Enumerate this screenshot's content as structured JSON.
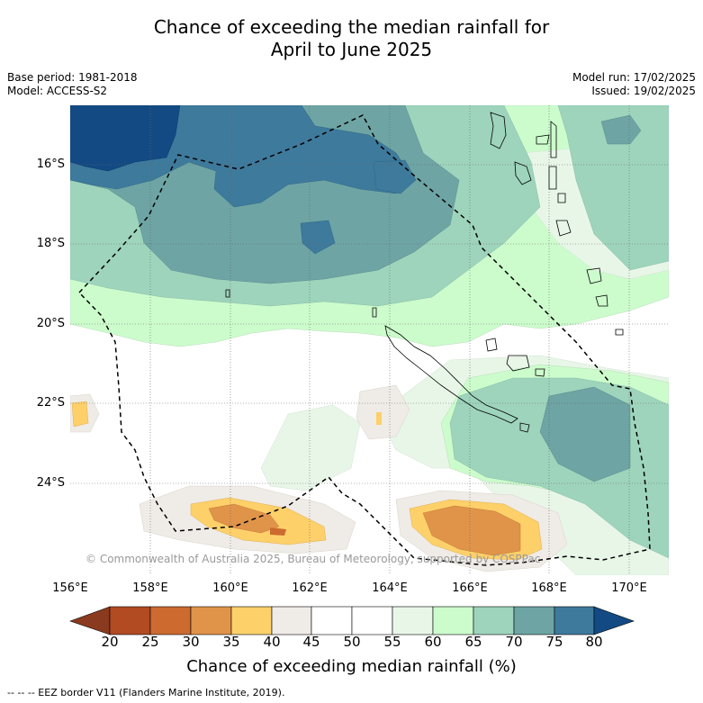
{
  "title_line1": "Chance of exceeding the median rainfall for",
  "title_line2": "April to June 2025",
  "meta_left": [
    "Base period: 1981-2018",
    "Model: ACCESS-S2"
  ],
  "meta_right": [
    "Model run: 17/02/2025",
    "Issued: 19/02/2025"
  ],
  "lat_labels": [
    "16°S",
    "18°S",
    "20°S",
    "22°S",
    "24°S"
  ],
  "lon_labels": [
    "156°E",
    "158°E",
    "160°E",
    "162°E",
    "164°E",
    "166°E",
    "168°E",
    "170°E"
  ],
  "copyright": "© Commonwealth of Australia 2025, Bureau of Meteorology, supported by COSPPac",
  "colorbar": {
    "ticks": [
      "20",
      "25",
      "30",
      "35",
      "40",
      "45",
      "50",
      "55",
      "60",
      "65",
      "70",
      "75",
      "80"
    ],
    "colors": [
      "#8a3a1f",
      "#b24a22",
      "#cc6a30",
      "#e0944a",
      "#fdd06a",
      "#efebe6",
      "#ffffff",
      "#ffffff",
      "#e8f6e8",
      "#ccfccc",
      "#9ed4bc",
      "#6ea4a4",
      "#3e7a9c",
      "#134a84"
    ],
    "title": "Chance of exceeding median rainfall (%)"
  },
  "footnote": "--  --  -- EEZ border V11 (Flanders Marine Institute, 2019)."
}
